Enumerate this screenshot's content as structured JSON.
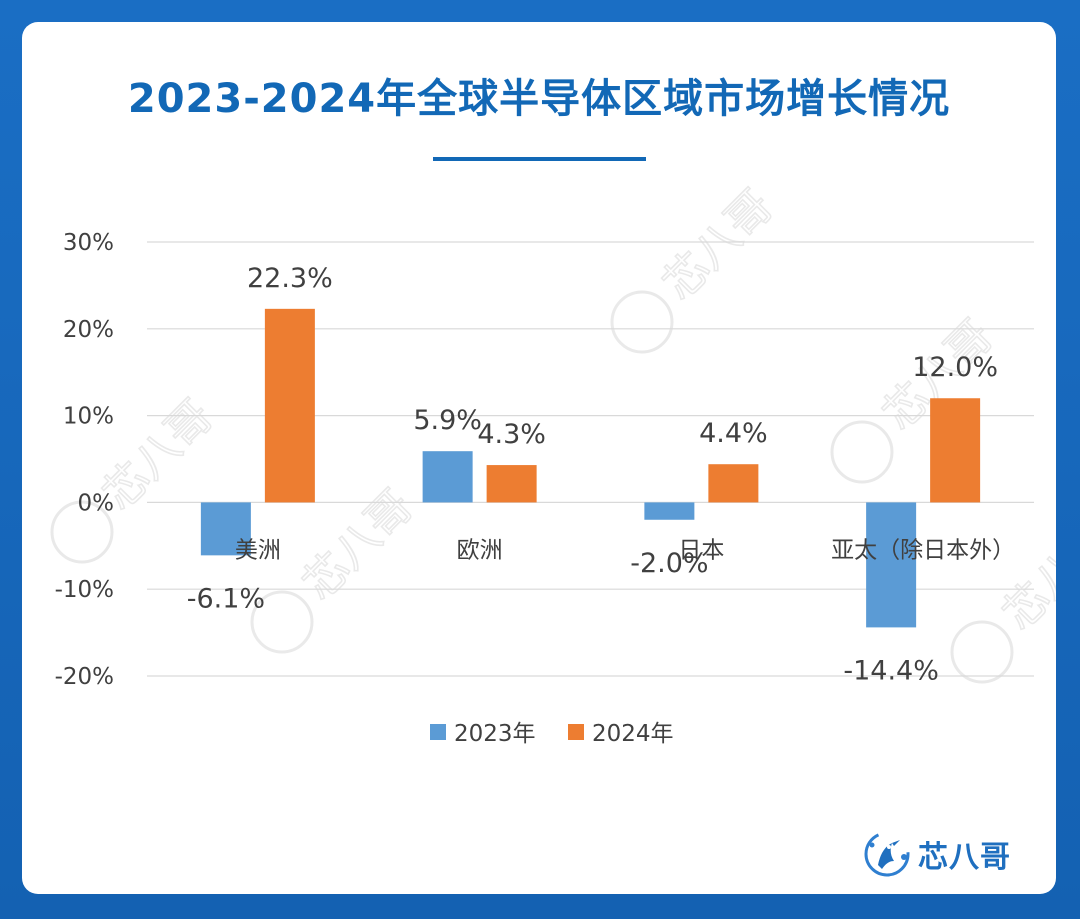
{
  "title": "2023-2024年全球半导体区域市场增长情况",
  "brand": {
    "name": "芯八哥"
  },
  "watermark": {
    "text": "芯八哥"
  },
  "colors": {
    "background": "#1565b8",
    "title": "#1268b6",
    "series_2023": "#5b9bd5",
    "series_2024": "#ed7d31",
    "grid": "#d9d9d9",
    "text": "#404040"
  },
  "chart_data": {
    "type": "bar",
    "title": "2023-2024年全球半导体区域市场增长情况",
    "categories": [
      "美洲",
      "欧洲",
      "日本",
      "亚太（除日本外）"
    ],
    "series": [
      {
        "name": "2023年",
        "values": [
          -6.1,
          5.9,
          -2.0,
          -14.4
        ],
        "labels": [
          "-6.1%",
          "5.9%",
          "-2.0%",
          "-14.4%"
        ]
      },
      {
        "name": "2024年",
        "values": [
          22.3,
          4.3,
          4.4,
          12.0
        ],
        "labels": [
          "22.3%",
          "4.3%",
          "4.4%",
          "12.0%"
        ]
      }
    ],
    "yticks": [
      "30%",
      "20%",
      "10%",
      "0%",
      "-10%",
      "-20%"
    ],
    "ytick_values": [
      30,
      20,
      10,
      0,
      -10,
      -20
    ],
    "ylim": [
      -20,
      30
    ],
    "xlabel": "",
    "ylabel": "",
    "grid": true,
    "legend": "bottom"
  }
}
